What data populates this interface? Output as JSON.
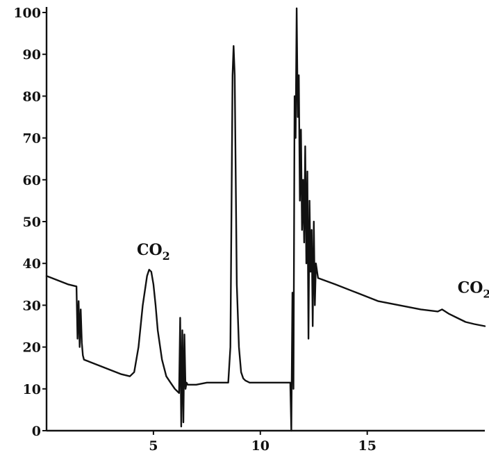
{
  "chart_data": {
    "type": "line",
    "title": "",
    "xlabel": "",
    "ylabel": "",
    "xlim": [
      0,
      20.5
    ],
    "ylim": [
      0,
      100
    ],
    "x_ticks": [
      5,
      10,
      15
    ],
    "y_ticks": [
      0,
      10,
      20,
      30,
      40,
      50,
      60,
      70,
      80,
      90,
      100
    ],
    "grid": false,
    "legend": "none",
    "annotations": [
      {
        "text": "CO",
        "subscript": "2",
        "x": 5.0,
        "y": 42
      },
      {
        "text": "CO",
        "subscript": "2",
        "x": 20.0,
        "y": 33
      }
    ],
    "series": [
      {
        "x": [
          0.0,
          0.5,
          1.0,
          1.4,
          1.45,
          1.5,
          1.55,
          1.6,
          1.65,
          1.7,
          1.75,
          2.0,
          2.5,
          3.0,
          3.5,
          3.9,
          4.1,
          4.3,
          4.5,
          4.7,
          4.8,
          4.9,
          5.0,
          5.1,
          5.2,
          5.4,
          5.6,
          5.8,
          6.0,
          6.2,
          6.25,
          6.3,
          6.35,
          6.4,
          6.45,
          6.5,
          6.55,
          6.6,
          6.7,
          7.0,
          7.5,
          8.0,
          8.5,
          8.6,
          8.7,
          8.75,
          8.8,
          8.85,
          8.9,
          9.0,
          9.1,
          9.2,
          9.3,
          9.5,
          9.8,
          10.5,
          11.0,
          11.4,
          11.45,
          11.5,
          11.55,
          11.6,
          11.65,
          11.7,
          11.75,
          11.8,
          11.85,
          11.9,
          11.95,
          12.0,
          12.05,
          12.1,
          12.15,
          12.2,
          12.25,
          12.3,
          12.35,
          12.4,
          12.45,
          12.5,
          12.55,
          12.6,
          12.7,
          13.5,
          14.5,
          15.5,
          16.5,
          17.5,
          18.3,
          18.5,
          18.8,
          19.2,
          19.6,
          20.0,
          20.5
        ],
        "y": [
          37,
          36,
          35,
          34.5,
          22,
          31,
          20,
          29,
          21,
          18,
          17,
          16.5,
          15.5,
          14.5,
          13.5,
          13,
          14,
          20,
          30,
          37,
          38.5,
          38,
          35,
          30,
          24,
          17,
          13,
          11.5,
          10,
          9,
          27,
          1,
          24,
          2,
          23,
          10,
          11.5,
          11,
          11,
          11,
          11.5,
          11.5,
          11.5,
          20,
          85,
          92,
          85,
          60,
          35,
          20,
          14,
          12.5,
          12,
          11.5,
          11.5,
          11.5,
          11.5,
          11.5,
          0,
          33,
          10,
          80,
          70,
          101,
          75,
          85,
          55,
          72,
          48,
          60,
          45,
          68,
          40,
          62,
          22,
          55,
          38,
          48,
          25,
          50,
          30,
          40,
          36.5,
          35,
          33,
          31,
          30,
          29,
          28.5,
          29,
          28,
          27,
          26,
          25.5,
          25
        ]
      }
    ]
  }
}
